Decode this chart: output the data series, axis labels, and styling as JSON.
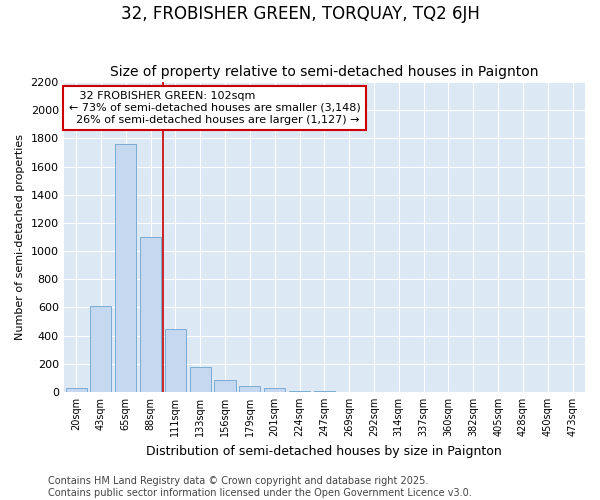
{
  "title": "32, FROBISHER GREEN, TORQUAY, TQ2 6JH",
  "subtitle": "Size of property relative to semi-detached houses in Paignton",
  "xlabel": "Distribution of semi-detached houses by size in Paignton",
  "ylabel": "Number of semi-detached properties",
  "categories": [
    "20sqm",
    "43sqm",
    "65sqm",
    "88sqm",
    "111sqm",
    "133sqm",
    "156sqm",
    "179sqm",
    "201sqm",
    "224sqm",
    "247sqm",
    "269sqm",
    "292sqm",
    "314sqm",
    "337sqm",
    "360sqm",
    "382sqm",
    "405sqm",
    "428sqm",
    "450sqm",
    "473sqm"
  ],
  "values": [
    30,
    610,
    1760,
    1100,
    450,
    175,
    85,
    40,
    25,
    10,
    5,
    0,
    0,
    0,
    0,
    0,
    0,
    0,
    0,
    0,
    0
  ],
  "bar_color": "#c5d8f0",
  "bar_edge_color": "#7aadd4",
  "line_color": "#cc0000",
  "annotation_box_color": "#cc0000",
  "property_line_label": "32 FROBISHER GREEN: 102sqm",
  "smaller_pct": "73%",
  "smaller_count": "3,148",
  "larger_pct": "26%",
  "larger_count": "1,127",
  "ylim": [
    0,
    2200
  ],
  "yticks": [
    0,
    200,
    400,
    600,
    800,
    1000,
    1200,
    1400,
    1600,
    1800,
    2000,
    2200
  ],
  "background_color": "#dce9f5",
  "fig_background": "#ffffff",
  "grid_color": "#ffffff",
  "title_fontsize": 12,
  "subtitle_fontsize": 10,
  "ylabel_fontsize": 8,
  "xlabel_fontsize": 9,
  "footer_fontsize": 7,
  "footer": "Contains HM Land Registry data © Crown copyright and database right 2025.\nContains public sector information licensed under the Open Government Licence v3.0."
}
